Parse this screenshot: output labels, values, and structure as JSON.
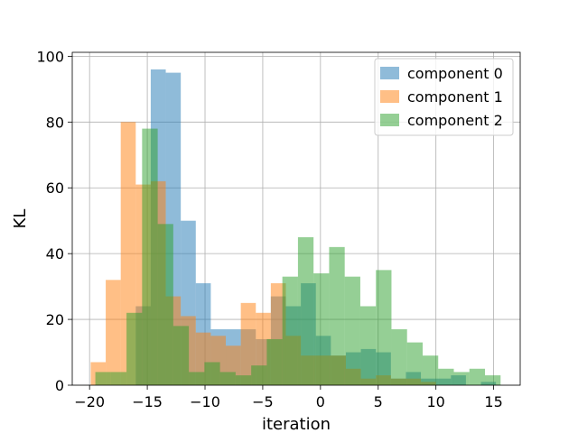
{
  "chart_data": {
    "type": "histogram",
    "xlabel": "iteration",
    "ylabel": "KL",
    "xlim": [
      -21.5,
      17.3
    ],
    "ylim": [
      0,
      101.2
    ],
    "xticks": [
      -20,
      -15,
      -10,
      -5,
      0,
      5,
      10,
      15
    ],
    "yticks": [
      0,
      20,
      40,
      60,
      80,
      100
    ],
    "grid": true,
    "legend_position": "upper right",
    "alpha": 0.5,
    "series": [
      {
        "name": "component 0",
        "color": "#1f77b4",
        "bin_start": -16.0,
        "bin_width": 1.3,
        "counts": [
          24,
          96,
          95,
          50,
          31,
          17,
          17,
          17,
          14,
          27,
          24,
          31,
          15,
          9,
          10,
          11,
          10,
          2,
          4,
          2,
          2,
          3,
          0,
          1
        ]
      },
      {
        "name": "component 1",
        "color": "#ff7f0e",
        "bin_start": -19.9,
        "bin_width": 1.3,
        "counts": [
          7,
          32,
          80,
          61,
          62,
          27,
          21,
          16,
          15,
          12,
          25,
          22,
          31,
          15,
          9,
          9,
          9,
          5,
          2,
          3,
          2,
          2,
          1
        ]
      },
      {
        "name": "component 2",
        "color": "#2ca02c",
        "bin_start": -19.5,
        "bin_width": 1.35,
        "counts": [
          4,
          4,
          22,
          78,
          49,
          18,
          4,
          7,
          4,
          3,
          6,
          14,
          33,
          45,
          34,
          42,
          33,
          24,
          35,
          17,
          13,
          9,
          5,
          4,
          5,
          3
        ]
      }
    ]
  }
}
